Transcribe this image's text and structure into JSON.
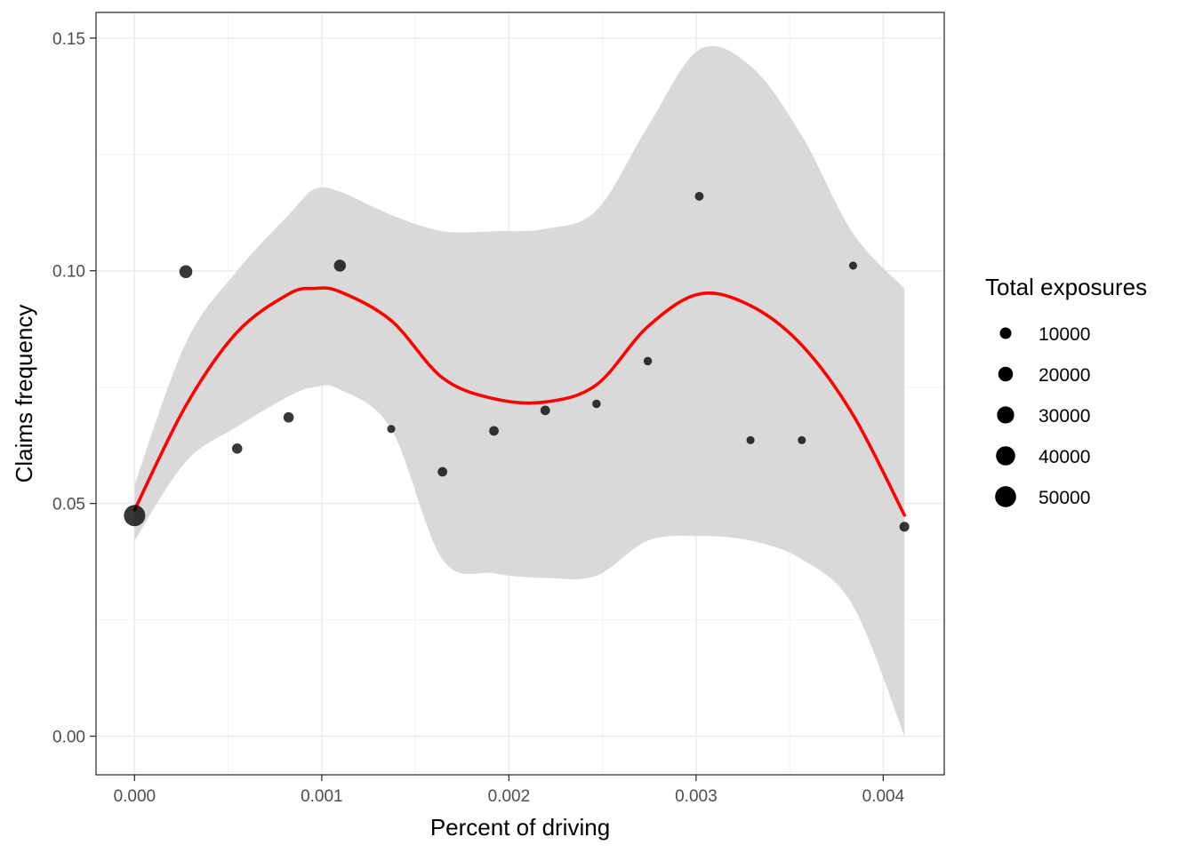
{
  "chart_data": {
    "type": "scatter",
    "title": "",
    "xlabel": "Percent of driving",
    "ylabel": "Claims frequency",
    "xlim": [
      -0.000206,
      0.004326
    ],
    "ylim": [
      -0.0083,
      0.1555
    ],
    "x_ticks": [
      0.0,
      0.001,
      0.002,
      0.003,
      0.004
    ],
    "x_tick_labels": [
      "0.000",
      "0.001",
      "0.002",
      "0.003",
      "0.004"
    ],
    "y_ticks": [
      0.0,
      0.05,
      0.1,
      0.15
    ],
    "y_tick_labels": [
      "0.00",
      "0.05",
      "0.10",
      "0.15"
    ],
    "grid": true,
    "theme": "bw",
    "points": [
      {
        "x": 0.0,
        "y": 0.0474,
        "size": 52000
      },
      {
        "x": 0.000274,
        "y": 0.0998,
        "size": 14000
      },
      {
        "x": 0.000548,
        "y": 0.0618,
        "size": 7000
      },
      {
        "x": 0.000823,
        "y": 0.0685,
        "size": 7000
      },
      {
        "x": 0.001097,
        "y": 0.1011,
        "size": 11000
      },
      {
        "x": 0.001371,
        "y": 0.066,
        "size": 3000
      },
      {
        "x": 0.001645,
        "y": 0.0568,
        "size": 5500
      },
      {
        "x": 0.00192,
        "y": 0.0656,
        "size": 5500
      },
      {
        "x": 0.002194,
        "y": 0.07,
        "size": 5500
      },
      {
        "x": 0.002468,
        "y": 0.0714,
        "size": 3500
      },
      {
        "x": 0.002742,
        "y": 0.0806,
        "size": 3500
      },
      {
        "x": 0.003017,
        "y": 0.116,
        "size": 4000
      },
      {
        "x": 0.003291,
        "y": 0.0636,
        "size": 3000
      },
      {
        "x": 0.003565,
        "y": 0.0636,
        "size": 3000
      },
      {
        "x": 0.003839,
        "y": 0.1011,
        "size": 3000
      },
      {
        "x": 0.004113,
        "y": 0.045,
        "size": 6000
      }
    ],
    "point_color": "#000000",
    "smooth": {
      "color": "#ff0000",
      "band_color": "#d9d9d9",
      "x": [
        0.0,
        0.000274,
        0.000548,
        0.000823,
        0.00096,
        0.001097,
        0.001371,
        0.001645,
        0.00192,
        0.002194,
        0.002468,
        0.002742,
        0.003017,
        0.003291,
        0.003565,
        0.003839,
        0.004113
      ],
      "fit": [
        0.0486,
        0.071,
        0.0868,
        0.095,
        0.0962,
        0.0955,
        0.0893,
        0.077,
        0.0725,
        0.0718,
        0.0755,
        0.088,
        0.095,
        0.0925,
        0.084,
        0.069,
        0.0475
      ],
      "upper": [
        0.054,
        0.0845,
        0.1,
        0.112,
        0.1175,
        0.117,
        0.112,
        0.1085,
        0.1085,
        0.109,
        0.113,
        0.131,
        0.1475,
        0.144,
        0.129,
        0.108,
        0.0962
      ],
      "lower": [
        0.042,
        0.059,
        0.0665,
        0.073,
        0.075,
        0.0745,
        0.066,
        0.038,
        0.035,
        0.034,
        0.0345,
        0.042,
        0.043,
        0.042,
        0.038,
        0.028,
        0.0
      ]
    },
    "legend": {
      "title": "Total exposures",
      "position": "right",
      "entries": [
        {
          "label": "10000",
          "size": 10000
        },
        {
          "label": "20000",
          "size": 20000
        },
        {
          "label": "30000",
          "size": 30000
        },
        {
          "label": "40000",
          "size": 40000
        },
        {
          "label": "50000",
          "size": 50000
        }
      ]
    }
  }
}
